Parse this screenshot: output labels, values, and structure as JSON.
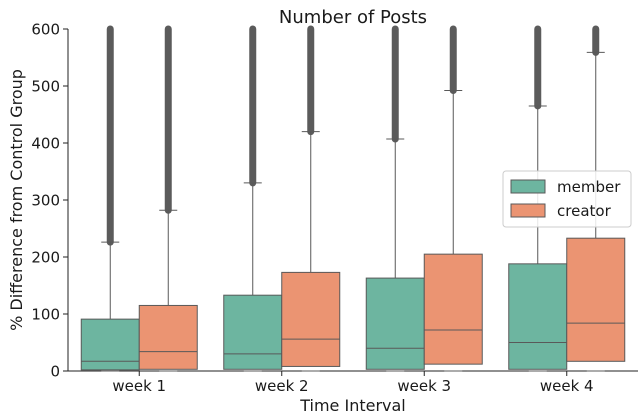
{
  "chart_data": {
    "type": "box",
    "title": "Number of Posts",
    "xlabel": "Time Interval",
    "ylabel": "% Difference from Control Group",
    "ylim": [
      0,
      600
    ],
    "yticks": [
      0,
      100,
      200,
      300,
      400,
      500,
      600
    ],
    "categories": [
      "week 1",
      "week 2",
      "week 3",
      "week 4"
    ],
    "grid": false,
    "legend_position": "center-right",
    "series": [
      {
        "name": "member",
        "color": "#6db5a0",
        "boxes": [
          {
            "q1": 2,
            "median": 17,
            "q3": 91,
            "whisker_low": 0,
            "whisker_high": 226,
            "outliers_from": 226
          },
          {
            "q1": 3,
            "median": 30,
            "q3": 133,
            "whisker_low": 0,
            "whisker_high": 330,
            "outliers_from": 330
          },
          {
            "q1": 3,
            "median": 40,
            "q3": 163,
            "whisker_low": 0,
            "whisker_high": 407,
            "outliers_from": 407
          },
          {
            "q1": 3,
            "median": 50,
            "q3": 188,
            "whisker_low": 0,
            "whisker_high": 465,
            "outliers_from": 465
          }
        ]
      },
      {
        "name": "creator",
        "color": "#eb9472",
        "boxes": [
          {
            "q1": 3,
            "median": 34,
            "q3": 115,
            "whisker_low": 0,
            "whisker_high": 282,
            "outliers_from": 282
          },
          {
            "q1": 8,
            "median": 56,
            "q3": 173,
            "whisker_low": 0,
            "whisker_high": 420,
            "outliers_from": 420
          },
          {
            "q1": 12,
            "median": 72,
            "q3": 205,
            "whisker_low": 0,
            "whisker_high": 492,
            "outliers_from": 492
          },
          {
            "q1": 17,
            "median": 84,
            "q3": 233,
            "whisker_low": 0,
            "whisker_high": 559,
            "outliers_from": 559
          }
        ]
      }
    ],
    "outlier_color": "#5b5b5b",
    "line_color": "#595959"
  }
}
